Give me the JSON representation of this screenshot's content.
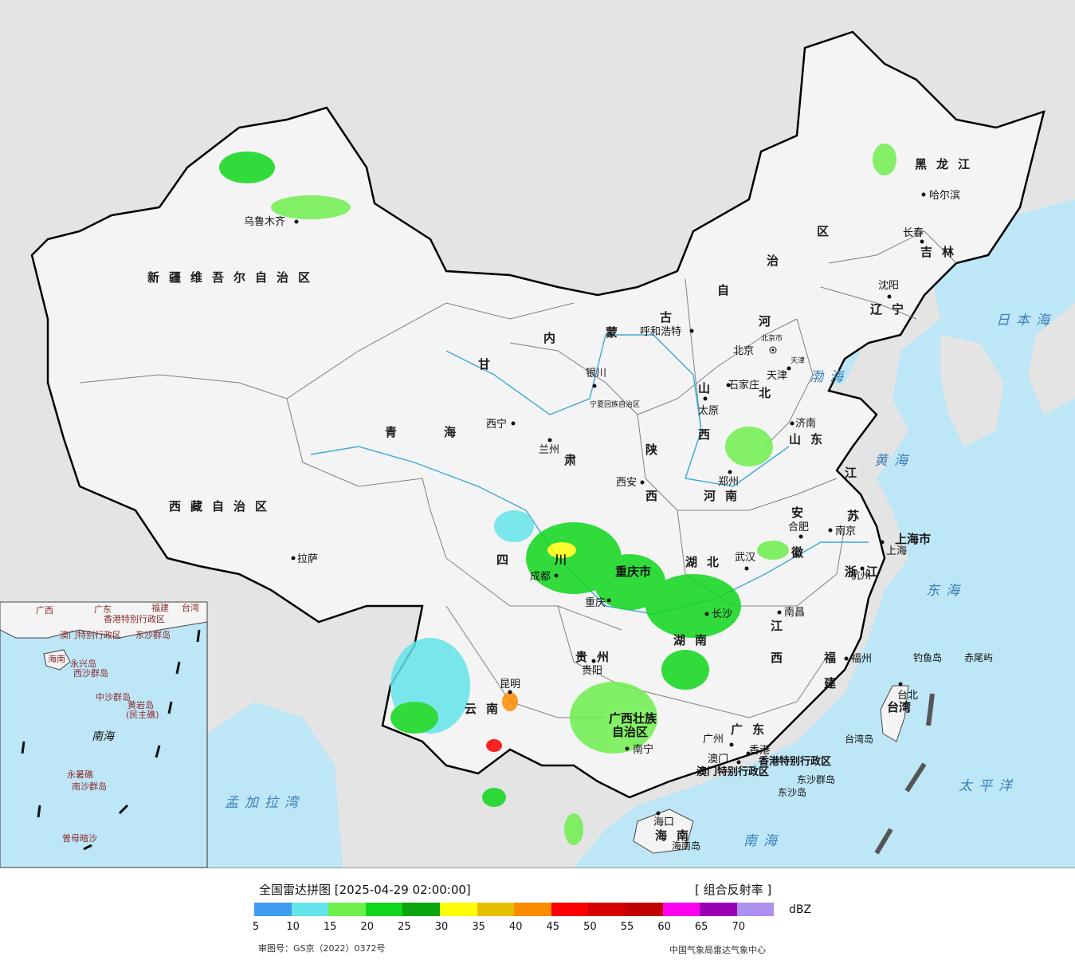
{
  "map": {
    "provinces": [
      {
        "id": "xinjiang",
        "text": "新疆维吾尔自治区"
      },
      {
        "id": "xizang",
        "text": "西藏自治区"
      },
      {
        "id": "qinghai-1",
        "text": "青"
      },
      {
        "id": "qinghai-2",
        "text": "海"
      },
      {
        "id": "gansu-1",
        "text": "甘"
      },
      {
        "id": "gansu-2",
        "text": "肃"
      },
      {
        "id": "neimenggu-1",
        "text": "内"
      },
      {
        "id": "neimenggu-2",
        "text": "蒙"
      },
      {
        "id": "neimenggu-3",
        "text": "古"
      },
      {
        "id": "neimenggu-4",
        "text": "自"
      },
      {
        "id": "neimenggu-5",
        "text": "治"
      },
      {
        "id": "neimenggu-6",
        "text": "区"
      },
      {
        "id": "heilongjiang",
        "text": "黑龙江"
      },
      {
        "id": "jilin",
        "text": "吉林"
      },
      {
        "id": "liaoning",
        "text": "辽宁"
      },
      {
        "id": "hebei-1",
        "text": "河"
      },
      {
        "id": "hebei-2",
        "text": "北"
      },
      {
        "id": "shanxi-1",
        "text": "山"
      },
      {
        "id": "shanxi-2",
        "text": "西"
      },
      {
        "id": "shaanxi-1",
        "text": "陕"
      },
      {
        "id": "shaanxi-2",
        "text": "西"
      },
      {
        "id": "shandong",
        "text": "山东"
      },
      {
        "id": "henan",
        "text": "河南"
      },
      {
        "id": "jiangsu-1",
        "text": "江"
      },
      {
        "id": "jiangsu-2",
        "text": "苏"
      },
      {
        "id": "anhui-1",
        "text": "安"
      },
      {
        "id": "anhui-2",
        "text": "徽"
      },
      {
        "id": "shanghai",
        "text": "上海市"
      },
      {
        "id": "zhejiang",
        "text": "浙江"
      },
      {
        "id": "hubei",
        "text": "湖北"
      },
      {
        "id": "sichuan-1",
        "text": "四"
      },
      {
        "id": "sichuan-2",
        "text": "川"
      },
      {
        "id": "chongqing",
        "text": "重庆市"
      },
      {
        "id": "hunan",
        "text": "湖南"
      },
      {
        "id": "jiangxi-1",
        "text": "江"
      },
      {
        "id": "jiangxi-2",
        "text": "西"
      },
      {
        "id": "fujian-1",
        "text": "福"
      },
      {
        "id": "fujian-2",
        "text": "建"
      },
      {
        "id": "guizhou",
        "text": "贵州"
      },
      {
        "id": "yunnan",
        "text": "云南"
      },
      {
        "id": "guangxi-1",
        "text": "广西壮族"
      },
      {
        "id": "guangxi-2",
        "text": "自治区"
      },
      {
        "id": "guangdong",
        "text": "广东"
      },
      {
        "id": "hainan",
        "text": "海南"
      },
      {
        "id": "taiwan",
        "text": "台湾"
      },
      {
        "id": "ningxia",
        "text": "宁夏回族自治区"
      },
      {
        "id": "hk-sar",
        "text": "香港特别行政区"
      },
      {
        "id": "macau-sar",
        "text": "澳门特别行政区"
      }
    ],
    "cities": [
      {
        "id": "urumqi",
        "text": "乌鲁木齐"
      },
      {
        "id": "lhasa",
        "text": "拉萨"
      },
      {
        "id": "xining",
        "text": "西宁"
      },
      {
        "id": "lanzhou",
        "text": "兰州"
      },
      {
        "id": "yinchuan",
        "text": "银川"
      },
      {
        "id": "hohhot",
        "text": "呼和浩特"
      },
      {
        "id": "beijing",
        "text": "北京"
      },
      {
        "id": "beijing-city",
        "text": "北京市"
      },
      {
        "id": "tianjin",
        "text": "天津"
      },
      {
        "id": "tianjin-city",
        "text": "天津"
      },
      {
        "id": "shijiazhuang",
        "text": "石家庄"
      },
      {
        "id": "taiyuan",
        "text": "太原"
      },
      {
        "id": "jinan",
        "text": "济南"
      },
      {
        "id": "zhengzhou",
        "text": "郑州"
      },
      {
        "id": "xian",
        "text": "西安"
      },
      {
        "id": "hefei",
        "text": "合肥"
      },
      {
        "id": "nanjing",
        "text": "南京"
      },
      {
        "id": "shanghai-city",
        "text": "上海"
      },
      {
        "id": "hangzhou",
        "text": "杭州"
      },
      {
        "id": "wuhan",
        "text": "武汉"
      },
      {
        "id": "changsha",
        "text": "长沙"
      },
      {
        "id": "nanchang",
        "text": "南昌"
      },
      {
        "id": "fuzhou",
        "text": "福州"
      },
      {
        "id": "taipei",
        "text": "台北"
      },
      {
        "id": "chengdu",
        "text": "成都"
      },
      {
        "id": "chongqing-city",
        "text": "重庆"
      },
      {
        "id": "guiyang",
        "text": "贵阳"
      },
      {
        "id": "kunming",
        "text": "昆明"
      },
      {
        "id": "nanning",
        "text": "南宁"
      },
      {
        "id": "guangzhou",
        "text": "广州"
      },
      {
        "id": "hongkong",
        "text": "香港"
      },
      {
        "id": "macau",
        "text": "澳门"
      },
      {
        "id": "haikou",
        "text": "海口"
      },
      {
        "id": "harbin",
        "text": "哈尔滨"
      },
      {
        "id": "changchun",
        "text": "长春"
      },
      {
        "id": "shenyang",
        "text": "沈阳"
      }
    ],
    "seas": [
      {
        "id": "bohai",
        "text": "渤海"
      },
      {
        "id": "huanghai",
        "text": "黄海"
      },
      {
        "id": "donghai",
        "text": "东海"
      },
      {
        "id": "nanhai",
        "text": "南海"
      },
      {
        "id": "taipingyang",
        "text": "太平洋"
      },
      {
        "id": "ribenhai",
        "text": "日本海"
      },
      {
        "id": "mengjiala",
        "text": "孟加拉湾"
      }
    ],
    "islands": [
      {
        "id": "diaoyu",
        "text": "钓鱼岛"
      },
      {
        "id": "chiwei",
        "text": "赤尾屿"
      },
      {
        "id": "dongsha-islands",
        "text": "东沙群岛"
      },
      {
        "id": "dongsha-island",
        "text": "东沙岛"
      },
      {
        "id": "taiwan-island",
        "text": "台湾岛"
      },
      {
        "id": "hainan-island",
        "text": "海南岛"
      }
    ],
    "inset": {
      "labels": [
        {
          "id": "inset-guangdong",
          "text": "广东"
        },
        {
          "id": "inset-fujian",
          "text": "福建"
        },
        {
          "id": "inset-taiwan",
          "text": "台湾"
        },
        {
          "id": "inset-guangxi",
          "text": "广西"
        },
        {
          "id": "inset-hk",
          "text": "香港特别行政区"
        },
        {
          "id": "inset-macau",
          "text": "澳门特别行政区"
        },
        {
          "id": "inset-dongsha",
          "text": "东沙群岛"
        },
        {
          "id": "inset-hainan",
          "text": "海南"
        },
        {
          "id": "inset-xisha",
          "text": "西沙群岛"
        },
        {
          "id": "inset-yongxing",
          "text": "永兴岛"
        },
        {
          "id": "inset-zhongsha",
          "text": "中沙群岛"
        },
        {
          "id": "inset-huangyan",
          "text": "黄岩岛"
        },
        {
          "id": "inset-huangyan-2",
          "text": "(民主礁)"
        },
        {
          "id": "inset-nanhai",
          "text": "南海"
        },
        {
          "id": "inset-nansha",
          "text": "南沙群岛"
        },
        {
          "id": "inset-yongshu",
          "text": "永暑礁"
        },
        {
          "id": "inset-zengmu",
          "text": "曾母暗沙"
        }
      ]
    },
    "colors": {
      "land": "#f2f2f2",
      "foreign_land": "#e4e4e4",
      "sea": "#bde6f7",
      "border": "#000000",
      "province_border": "#7f7f7f",
      "river": "#3ea8d8"
    }
  },
  "legend": {
    "title": "全国雷达拼图 [2025-04-29 02:00:00]",
    "product": "[ 组合反射率 ]",
    "unit": "dBZ",
    "review_number": "审图号：GS京（2022）0372号",
    "source": "中国气象局雷达气象中心",
    "ticks": [
      "5",
      "10",
      "15",
      "20",
      "25",
      "30",
      "35",
      "40",
      "45",
      "50",
      "55",
      "60",
      "65",
      "70"
    ],
    "colors": [
      "#3e9cf0",
      "#64e4ea",
      "#6eef4d",
      "#10d71c",
      "#0aa50f",
      "#fffe0a",
      "#e6c000",
      "#fd8b00",
      "#fb0000",
      "#d60000",
      "#c00000",
      "#fe00f0",
      "#9a00b4",
      "#ad90f0"
    ]
  }
}
